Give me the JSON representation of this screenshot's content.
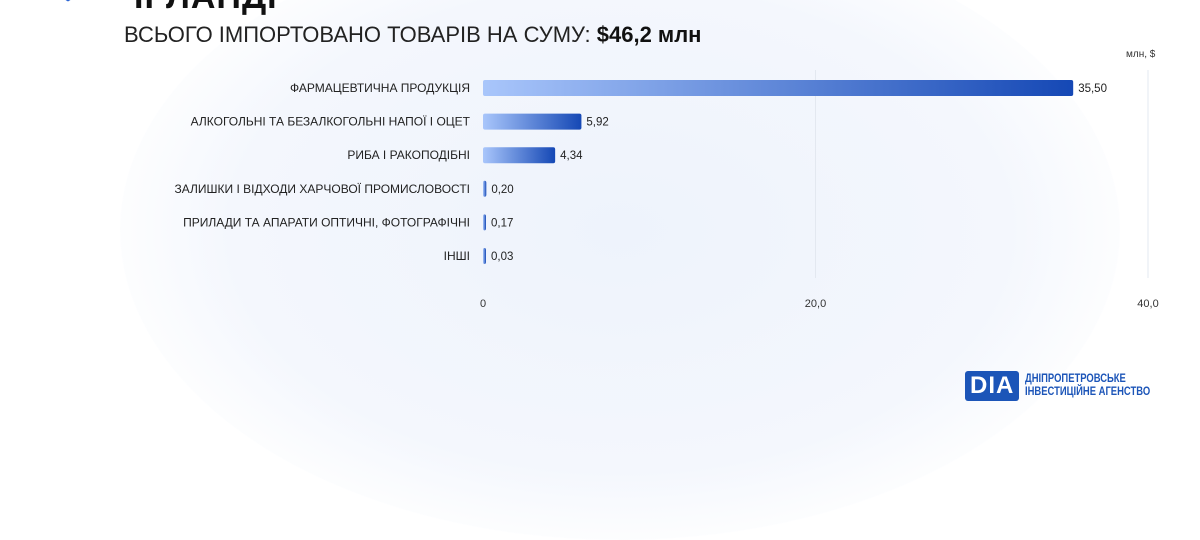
{
  "header": {
    "title": "ІРЛАНДІ",
    "subtitle_prefix": "ВСЬОГО ІМПОРТОВАНО ТОВАРІВ НА СУМУ:",
    "subtitle_value": "$46,2 млн"
  },
  "logo": {
    "mark": "DIA",
    "line1": "ДНІПРОПЕТРОВСЬКЕ",
    "line2": "ІНВЕСТИЦІЙНЕ АГЕНСТВО"
  },
  "chart_data": {
    "type": "bar",
    "orientation": "horizontal",
    "unit": "млн, $",
    "categories": [
      "ФАРМАЦЕВТИЧНА ПРОДУКЦІЯ",
      "АЛКОГОЛЬНІ ТА БЕЗАЛКОГОЛЬНІ НАПОЇ І ОЦЕТ",
      "РИБА І РАКОПОДІБНІ",
      "ЗАЛИШКИ І ВІДХОДИ ХАРЧОВОЇ ПРОМИСЛОВОСТІ",
      "ПРИЛАДИ ТА АПАРАТИ ОПТИЧНІ, ФОТОГРАФІЧНІ",
      "ІНШІ"
    ],
    "values": [
      35.5,
      5.92,
      4.34,
      0.2,
      0.17,
      0.03
    ],
    "labels": [
      "35,50",
      "5,92",
      "4,34",
      "0,20",
      "0,17",
      "0,03"
    ],
    "xlim": [
      0,
      40
    ],
    "xticks": [
      0,
      20,
      40
    ],
    "xtick_labels": [
      "0",
      "20,0",
      "40,0"
    ],
    "colors": {
      "start": "#a9c6fb",
      "end": "#1548b5"
    }
  }
}
